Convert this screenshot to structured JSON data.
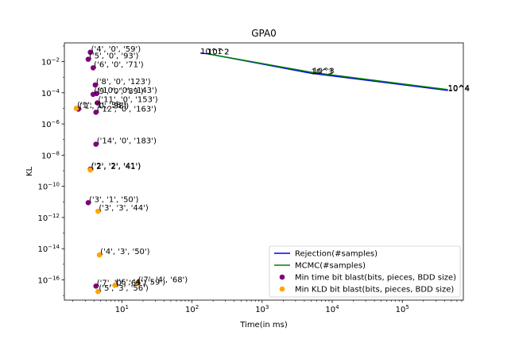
{
  "chart_data": {
    "type": "scatter",
    "title": "GPA0",
    "xlabel": "Time(in ms)",
    "ylabel": "KL",
    "xscale": "log",
    "yscale": "log",
    "xlim_log10": [
      0.18,
      5.87
    ],
    "ylim_log10": [
      -17.3,
      -0.8
    ],
    "x_ticks": [
      {
        "exp": 1,
        "label": "10",
        "sup": "1"
      },
      {
        "exp": 2,
        "label": "10",
        "sup": "2"
      },
      {
        "exp": 3,
        "label": "10",
        "sup": "3"
      },
      {
        "exp": 4,
        "label": "10",
        "sup": "4"
      },
      {
        "exp": 5,
        "label": "10",
        "sup": "5"
      }
    ],
    "y_ticks": [
      {
        "exp": -2,
        "label": "10",
        "sup": "−2"
      },
      {
        "exp": -4,
        "label": "10",
        "sup": "−4"
      },
      {
        "exp": -6,
        "label": "10",
        "sup": "−6"
      },
      {
        "exp": -8,
        "label": "10",
        "sup": "−8"
      },
      {
        "exp": -10,
        "label": "10",
        "sup": "−10"
      },
      {
        "exp": -12,
        "label": "10",
        "sup": "−12"
      },
      {
        "exp": -14,
        "label": "10",
        "sup": "−14"
      },
      {
        "exp": -16,
        "label": "10",
        "sup": "−16"
      }
    ],
    "series": [
      {
        "name": "Rejection(#samples)",
        "kind": "line",
        "color": "#0000ff",
        "points": [
          {
            "x_log10": 2.12,
            "y_log10": -1.45,
            "label": "10^1"
          },
          {
            "x_log10": 2.22,
            "y_log10": -1.5,
            "label": "10^2"
          },
          {
            "x_log10": 3.7,
            "y_log10": -2.75,
            "label": "10^3"
          },
          {
            "x_log10": 5.65,
            "y_log10": -3.85,
            "label": "10^4"
          }
        ]
      },
      {
        "name": "MCMC(#samples)",
        "kind": "line",
        "color": "#008000",
        "points": [
          {
            "x_log10": 2.22,
            "y_log10": -1.5,
            "label": "10^2"
          },
          {
            "x_log10": 3.72,
            "y_log10": -2.7,
            "label": "10^3"
          },
          {
            "x_log10": 5.65,
            "y_log10": -3.8,
            "label": "10^4"
          }
        ]
      },
      {
        "name": "Min time bit blast(bits, pieces, BDD size)",
        "kind": "scatter",
        "color": "#800080",
        "points": [
          {
            "x_log10": 0.55,
            "y_log10": -1.4,
            "label": "('4', '0', '59')"
          },
          {
            "x_log10": 0.52,
            "y_log10": -1.85,
            "label": "('5', '0', '93')"
          },
          {
            "x_log10": 0.59,
            "y_log10": -2.4,
            "label": "('6', '0', '71')"
          },
          {
            "x_log10": 0.62,
            "y_log10": -3.5,
            "label": "('8', '0', '123')"
          },
          {
            "x_log10": 0.59,
            "y_log10": -4.1,
            "label": "('9', '0', '89')"
          },
          {
            "x_log10": 0.64,
            "y_log10": -4.05,
            "label": "('10', '0', '143')"
          },
          {
            "x_log10": 0.65,
            "y_log10": -4.65,
            "label": "('11', '0', '153')"
          },
          {
            "x_log10": 0.38,
            "y_log10": -5.05,
            "label": "('1', '0', '38')"
          },
          {
            "x_log10": 0.63,
            "y_log10": -5.25,
            "label": "('12', '0', '163')"
          },
          {
            "x_log10": 0.63,
            "y_log10": -7.3,
            "label": "('14', '0', '183')"
          },
          {
            "x_log10": 0.55,
            "y_log10": -8.9,
            "label": "('2', '2', '41')"
          },
          {
            "x_log10": 0.52,
            "y_log10": -11.05,
            "label": "('3', '1', '50')"
          },
          {
            "x_log10": 0.63,
            "y_log10": -16.4,
            "label": "('7', '0', '65')"
          }
        ]
      },
      {
        "name": "Min KLD bit blast(bits, pieces, BDD size)",
        "kind": "scatter",
        "color": "#ffa500",
        "points": [
          {
            "x_log10": 0.35,
            "y_log10": -5.0,
            "label": "('1', '1', '38')"
          },
          {
            "x_log10": 0.55,
            "y_log10": -8.95,
            "label": "('2', '2', '41')"
          },
          {
            "x_log10": 0.66,
            "y_log10": -11.6,
            "label": "('3', '3', '44')"
          },
          {
            "x_log10": 0.68,
            "y_log10": -14.4,
            "label": "('4', '3', '50')"
          },
          {
            "x_log10": 0.66,
            "y_log10": -16.75,
            "label": "('5', '3', '56')"
          },
          {
            "x_log10": 0.9,
            "y_log10": -16.35,
            "label": "('6', '4', '59')"
          },
          {
            "x_log10": 1.22,
            "y_log10": -16.2,
            "label": "('7', '4', '68')"
          }
        ]
      }
    ],
    "legend": {
      "position": "lower-right"
    }
  }
}
